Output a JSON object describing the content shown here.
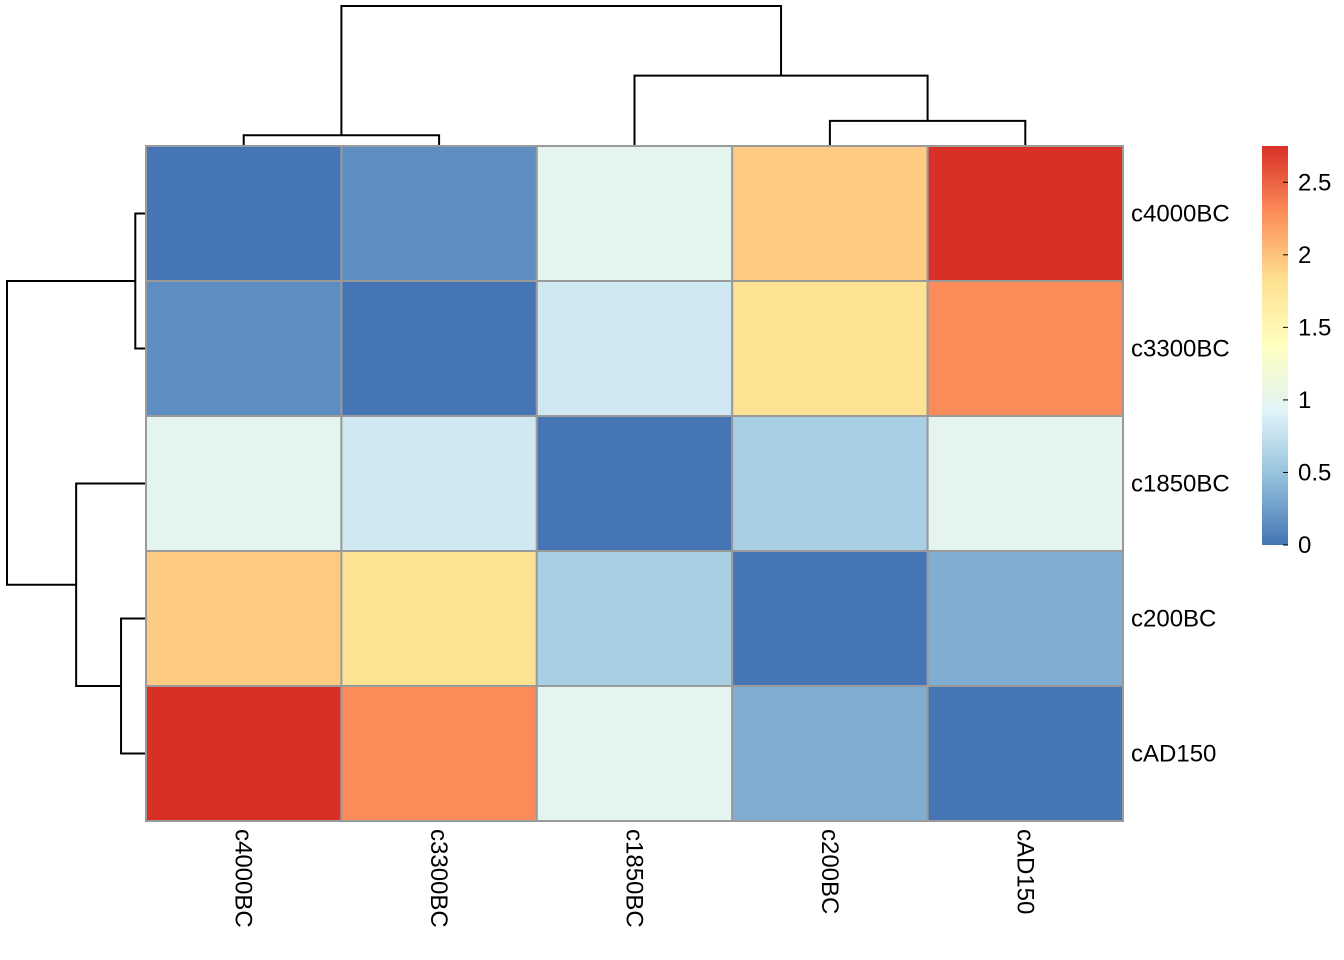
{
  "chart_data": {
    "type": "heatmap",
    "title": "",
    "xlabel": "",
    "ylabel": "",
    "rows": [
      "c4000BC",
      "c3300BC",
      "c1850BC",
      "c200BC",
      "cAD150"
    ],
    "columns": [
      "c4000BC",
      "c3300BC",
      "c1850BC",
      "c200BC",
      "cAD150"
    ],
    "values": [
      [
        0.0,
        0.15,
        0.98,
        1.95,
        2.75
      ],
      [
        0.15,
        0.0,
        0.82,
        1.8,
        2.3
      ],
      [
        0.98,
        0.82,
        0.0,
        0.6,
        0.98
      ],
      [
        1.95,
        1.8,
        0.6,
        0.0,
        0.35
      ],
      [
        2.75,
        2.3,
        0.98,
        0.35,
        0.0
      ]
    ],
    "color_scale": {
      "min": 0,
      "max": 2.75,
      "stops": [
        "#4575B4",
        "#91BFDB",
        "#E0F3F8",
        "#FFFFBF",
        "#FEE090",
        "#FC8D59",
        "#D73027"
      ],
      "ticks": [
        "0",
        "0.5",
        "1",
        "1.5",
        "2",
        "2.5"
      ],
      "tick_values": [
        0,
        0.5,
        1,
        1.5,
        2,
        2.5
      ],
      "legend_position": "right"
    },
    "column_dendrogram": {
      "merges": [
        [
          -1,
          -2,
          0.15
        ],
        [
          -4,
          -5,
          0.35
        ],
        [
          -3,
          2,
          0.98
        ],
        [
          1,
          3,
          1.95
        ]
      ],
      "visible": true
    },
    "row_dendrogram": {
      "merges": [
        [
          -1,
          -2,
          0.15
        ],
        [
          -4,
          -5,
          0.35
        ],
        [
          -3,
          2,
          0.98
        ],
        [
          1,
          3,
          1.95
        ]
      ],
      "visible": true
    },
    "grid": true
  }
}
